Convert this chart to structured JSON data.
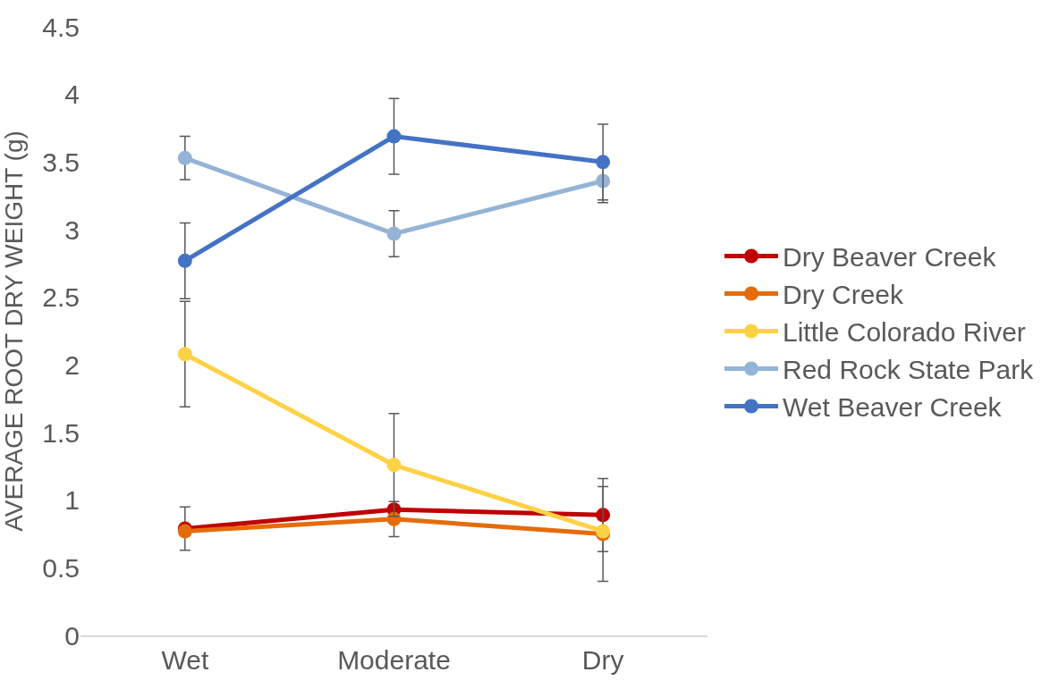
{
  "chart_data": {
    "type": "line",
    "ylabel": "AVERAGE ROOT DRY WEIGHT (g)",
    "categories": [
      "Wet",
      "Moderate",
      "Dry"
    ],
    "series": [
      {
        "name": "Dry Beaver Creek",
        "color": "#c00000",
        "values": [
          0.79,
          0.93,
          0.89
        ],
        "errors": [
          0.16,
          null,
          0.27
        ]
      },
      {
        "name": "Dry Creek",
        "color": "#e46c0a",
        "values": [
          0.77,
          0.86,
          0.75
        ],
        "errors": [
          null,
          0.13,
          0.35
        ]
      },
      {
        "name": "Little Colorado River",
        "color": "#ffd145",
        "values": [
          2.08,
          1.26,
          0.77
        ],
        "errors": [
          0.39,
          0.38,
          null
        ]
      },
      {
        "name": "Red Rock State Park",
        "color": "#95b3d7",
        "values": [
          3.53,
          2.97,
          3.36
        ],
        "errors": [
          0.16,
          0.17,
          0.16
        ]
      },
      {
        "name": "Wet Beaver Creek",
        "color": "#4472c4",
        "values": [
          2.77,
          3.69,
          3.5
        ],
        "errors": [
          0.28,
          0.28,
          0.28
        ]
      }
    ],
    "ylim": [
      0,
      4.5
    ],
    "yticks": [
      0,
      0.5,
      1,
      1.5,
      2,
      2.5,
      3,
      3.5,
      4,
      4.5
    ],
    "legend": "right",
    "marker": "circle",
    "line_style": "solid"
  }
}
